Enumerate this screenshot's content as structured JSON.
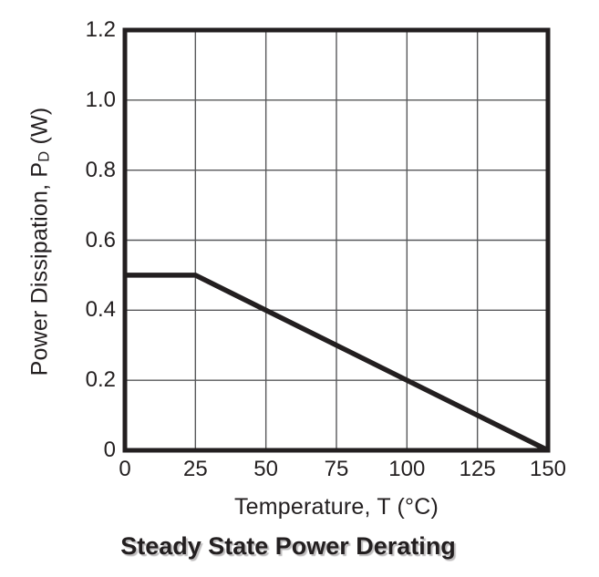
{
  "page": {
    "background": "#ffffff"
  },
  "chart_data": {
    "type": "line",
    "title": "Steady State Power Derating",
    "xlabel": "Temperature, T (°C)",
    "ylabel_parts": {
      "prefix": "Power Dissipation, P",
      "subscript": "D",
      "suffix": " (W)"
    },
    "series": [
      {
        "name": "steady-state-power-derating-curve",
        "points": [
          [
            0,
            0.5
          ],
          [
            25,
            0.5
          ],
          [
            150,
            0
          ]
        ]
      }
    ],
    "xlim": [
      0,
      150
    ],
    "ylim": [
      0,
      1.2
    ],
    "xticks": {
      "values": [
        0,
        25,
        50,
        75,
        100,
        125,
        150
      ],
      "labels": [
        "0",
        "25",
        "50",
        "75",
        "100",
        "125",
        "150"
      ]
    },
    "yticks": {
      "values": [
        0,
        0.2,
        0.4,
        0.6,
        0.8,
        1.0,
        1.2
      ],
      "labels": [
        "0",
        "0.2",
        "0.4",
        "0.6",
        "0.8",
        "1.0",
        "1.2"
      ]
    },
    "grid": true,
    "legend": false,
    "colors": {
      "line": "#231f20",
      "frame": "#231f20",
      "grid": "#57585a",
      "text": "#231f20"
    }
  }
}
